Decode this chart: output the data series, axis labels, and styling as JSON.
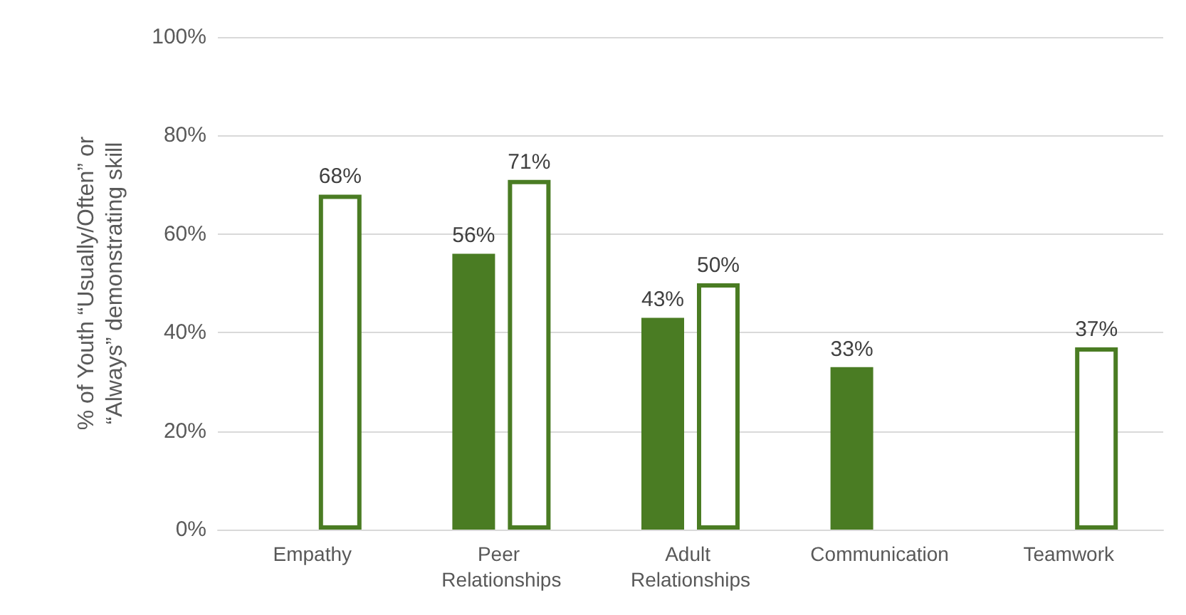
{
  "chart_data": {
    "type": "bar",
    "ylabel": "% of Youth “Usually/Often” or “Always” demonstrating skill",
    "categories": [
      "Empathy",
      "Peer Relationships",
      "Adult Relationships",
      "Communication",
      "Teamwork"
    ],
    "series": [
      {
        "color": "#4a7c23",
        "values": [
          null,
          56,
          43,
          33,
          null
        ],
        "value_labels": [
          null,
          "56%",
          "43%",
          "33%",
          null
        ]
      },
      {
        "color": "#4a7c23",
        "values": [
          68,
          71,
          50,
          null,
          37
        ],
        "value_labels": [
          "68%",
          "71%",
          "50%",
          null,
          "37%"
        ]
      }
    ],
    "ylim": [
      0,
      100
    ],
    "yticks": [
      {
        "value": 0,
        "label": "0%"
      },
      {
        "value": 20,
        "label": "20%"
      },
      {
        "value": 40,
        "label": "40%"
      },
      {
        "value": 60,
        "label": "60%"
      },
      {
        "value": 80,
        "label": "80%"
      },
      {
        "value": 100,
        "label": "100%"
      }
    ],
    "grid": "y"
  }
}
